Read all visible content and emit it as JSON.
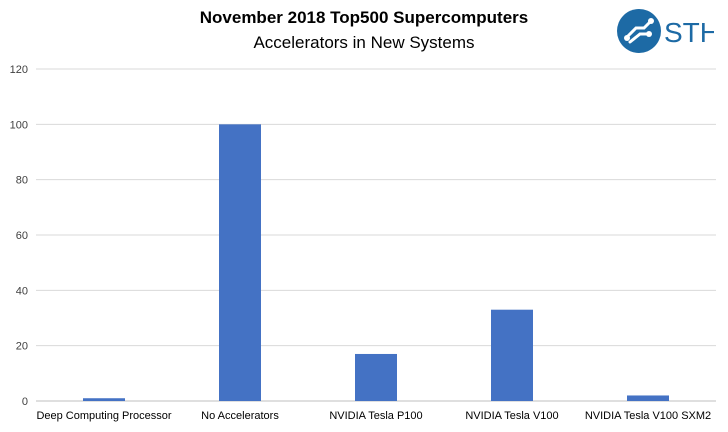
{
  "logo": {
    "text": "STH",
    "icon": "circuit-globe-icon",
    "color": "#1d6aa5"
  },
  "chart_data": {
    "type": "bar",
    "title": "November 2018 Top500 Supercomputers",
    "subtitle": "Accelerators in New Systems",
    "categories": [
      "Deep Computing Processor",
      "No Accelerators",
      "NVIDIA Tesla P100",
      "NVIDIA Tesla V100",
      "NVIDIA Tesla V100 SXM2"
    ],
    "values": [
      1,
      100,
      17,
      33,
      2
    ],
    "ylim": [
      0,
      120
    ],
    "yticks": [
      0,
      20,
      40,
      60,
      80,
      100,
      120
    ],
    "grid": true,
    "bar_color": "#4472c4"
  }
}
